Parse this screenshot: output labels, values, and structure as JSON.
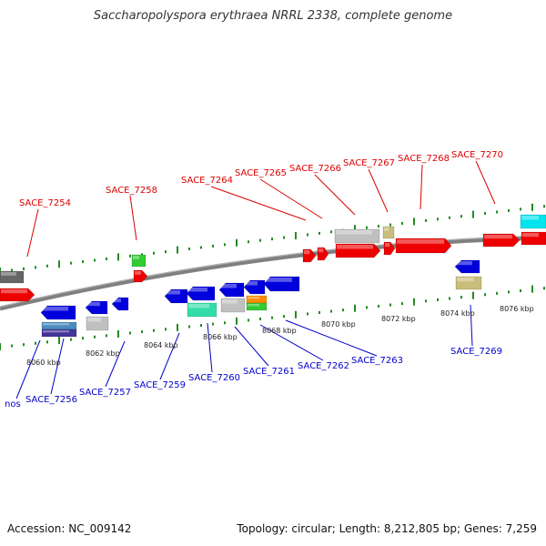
{
  "title": "Saccharopolyspora erythraea NRRL 2338, complete genome",
  "footer": {
    "accession": "Accession: NC_009142",
    "topology": "Topology: circular; Length: 8,212,805 bp; Genes: 7,259"
  },
  "colors": {
    "forward_label": "#dd0000",
    "reverse_label": "#0000cc",
    "scale_tick": "#228b22",
    "backbone": "#808080",
    "gene_red": "#ee0000",
    "gene_blue": "#0000dd",
    "gene_grey": "#c0c0c0",
    "gene_green": "#33cc33",
    "gene_teal": "#33ddaa",
    "gene_cyan": "#00e5ee",
    "gene_khaki": "#c8bd7a",
    "gene_orange": "#ff8c00",
    "gene_purple": "#443399",
    "gene_steel": "#4b8bbf",
    "gene_dark": "#666666"
  },
  "scale_labels": [
    "8060 kbp",
    "8062 kbp",
    "8064 kbp",
    "8066 kbp",
    "8068 kbp",
    "8070 kbp",
    "8072 kbp",
    "8074 kbp",
    "8076 kbp"
  ],
  "forward_genes": [
    "SACE_7254",
    "SACE_7258",
    "SACE_7264",
    "SACE_7265",
    "SACE_7266",
    "SACE_7267",
    "SACE_7268",
    "SACE_7270"
  ],
  "reverse_genes": [
    "nos",
    "SACE_7256",
    "SACE_7257",
    "SACE_7259",
    "SACE_7260",
    "SACE_7261",
    "SACE_7262",
    "SACE_7263",
    "SACE_7269"
  ]
}
